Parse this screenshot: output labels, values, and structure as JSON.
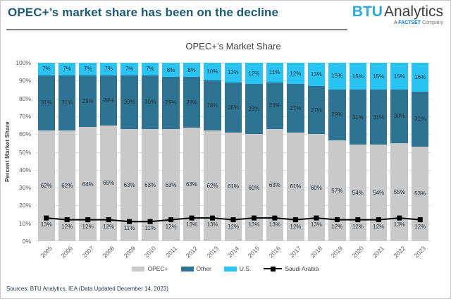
{
  "header": {
    "title": "OPEC+’s market share has been on the decline",
    "logo_btu": "BTU",
    "logo_analytics": "Analytics",
    "tagline_a": "A",
    "tagline_factset": "FACTSET",
    "tagline_company": "Company"
  },
  "chart_data": {
    "type": "bar",
    "stacked": true,
    "percent_stacked": true,
    "title": "OPEC+’s Market Share",
    "ylabel": "Percent Market Share",
    "xlabel": "",
    "ylim": [
      0,
      100
    ],
    "y_tick_step": 10,
    "grid": true,
    "legend_position": "bottom",
    "categories": [
      "2005",
      "2006",
      "2007",
      "2008",
      "2009",
      "2010",
      "2011",
      "2012",
      "2013",
      "2014",
      "2015",
      "2016",
      "2017",
      "2018",
      "2019",
      "2020",
      "2021",
      "2022",
      "2023"
    ],
    "series": [
      {
        "name": "OPEC+",
        "type": "bar",
        "color": "#c9c9c9",
        "values": [
          62,
          62,
          64,
          65,
          63,
          63,
          63,
          63,
          62,
          61,
          60,
          63,
          61,
          60,
          57,
          54,
          54,
          55,
          53
        ]
      },
      {
        "name": "Other",
        "type": "bar",
        "color": "#2e7492",
        "values": [
          31,
          31,
          29,
          28,
          30,
          30,
          29,
          28,
          28,
          28,
          28,
          26,
          27,
          27,
          29,
          31,
          31,
          30,
          31
        ]
      },
      {
        "name": "U.S.",
        "type": "bar",
        "color": "#29c4f3",
        "values": [
          7,
          7,
          7,
          7,
          7,
          7,
          8,
          8,
          10,
          11,
          12,
          11,
          12,
          13,
          15,
          15,
          15,
          15,
          16
        ]
      },
      {
        "name": "Saudi Arabia",
        "type": "line",
        "color": "#000000",
        "values": [
          13,
          12,
          12,
          12,
          11,
          11,
          12,
          13,
          13,
          12,
          13,
          13,
          12,
          13,
          12,
          12,
          12,
          13,
          12
        ]
      }
    ]
  },
  "footer": {
    "sources": "Sources: BTU Analytics, IEA (Data Updated December 14, 2023)"
  }
}
